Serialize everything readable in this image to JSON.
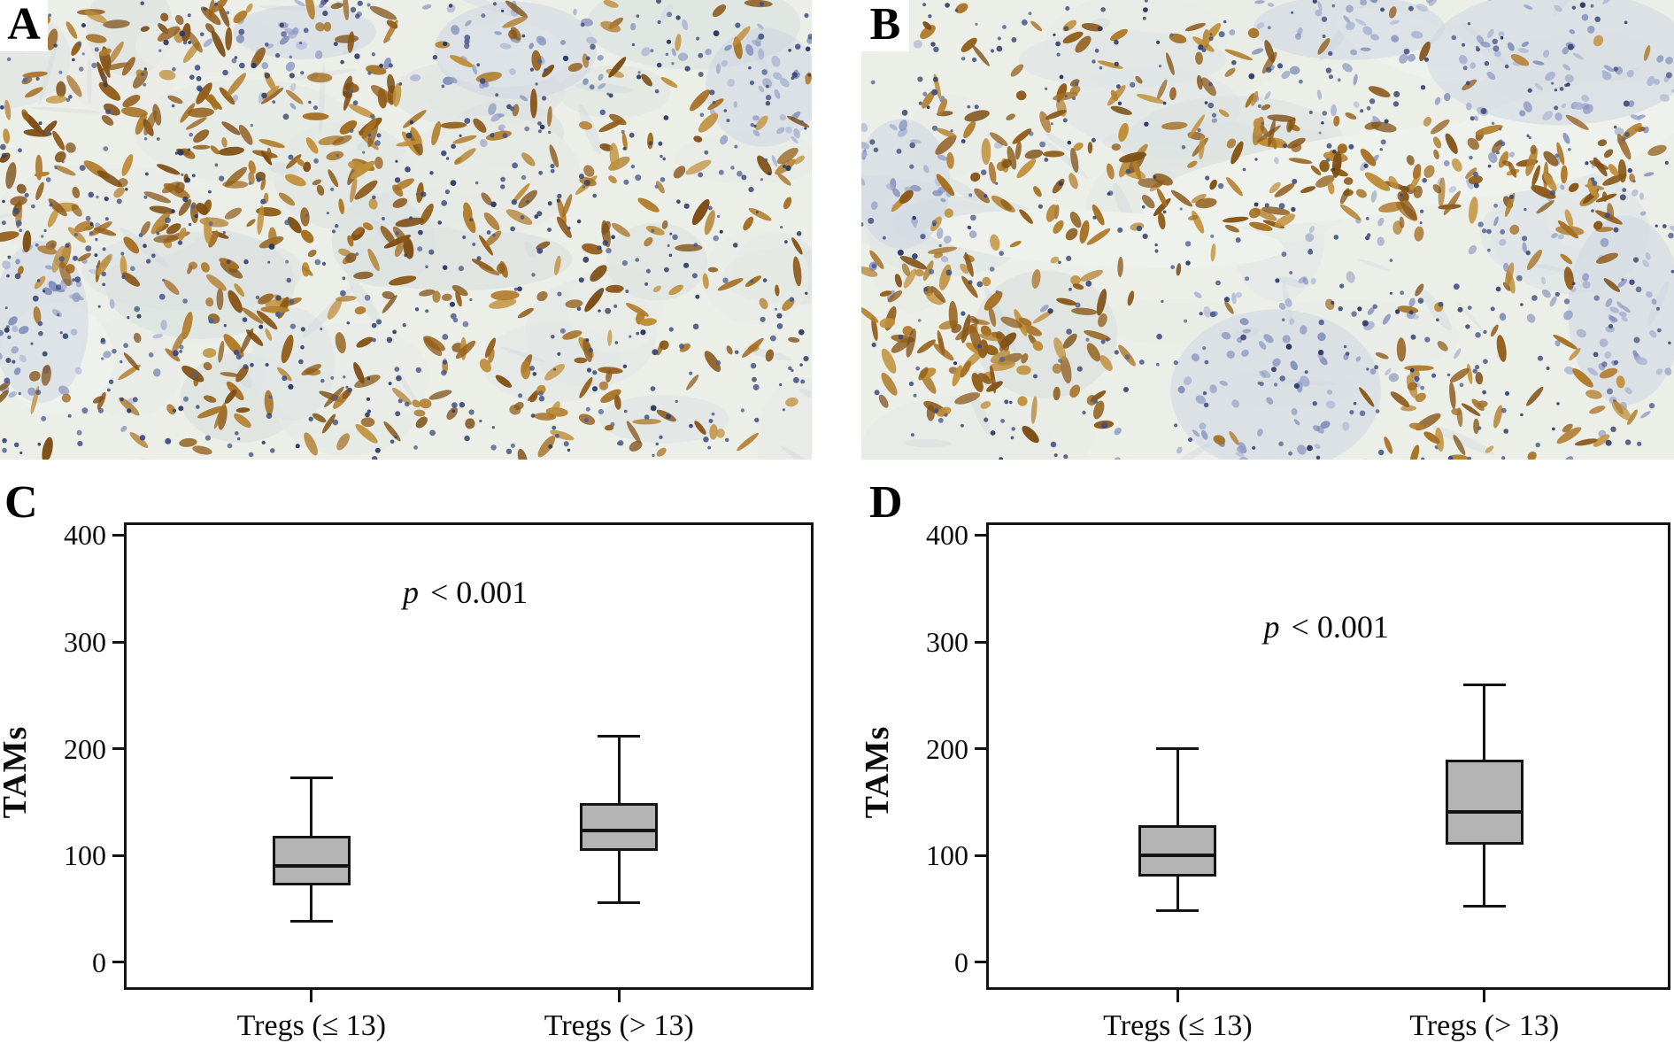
{
  "figure": {
    "panels": [
      {
        "id": "A",
        "label": "A",
        "description": "immunohistochemistry micrograph, brown TAM staining, dense"
      },
      {
        "id": "B",
        "label": "B",
        "description": "immunohistochemistry micrograph, brown TAM staining, banded"
      },
      {
        "id": "C",
        "label": "C",
        "description": "box plot of TAMs by Tregs group"
      },
      {
        "id": "D",
        "label": "D",
        "description": "box plot of TAMs by Tregs group"
      }
    ]
  },
  "chart_data": [
    {
      "panel": "C",
      "type": "box",
      "title": "",
      "xlabel": "",
      "ylabel": "TAMs",
      "categories": [
        "Tregs (≤ 13)",
        "Tregs (> 13)"
      ],
      "yticks": [
        0,
        100,
        200,
        300,
        400
      ],
      "ylim": [
        -26,
        412
      ],
      "grid": false,
      "annotation": "p < 0.001",
      "series": [
        {
          "name": "Tregs (≤ 13)",
          "whisker_low": 38,
          "q1": 72,
          "median": 90,
          "q3": 118,
          "whisker_high": 173
        },
        {
          "name": "Tregs (> 13)",
          "whisker_low": 56,
          "q1": 104,
          "median": 123,
          "q3": 149,
          "whisker_high": 212
        }
      ]
    },
    {
      "panel": "D",
      "type": "box",
      "title": "",
      "xlabel": "",
      "ylabel": "TAMs",
      "categories": [
        "Tregs (≤ 13)",
        "Tregs (> 13)"
      ],
      "yticks": [
        0,
        100,
        200,
        300,
        400
      ],
      "ylim": [
        -26,
        412
      ],
      "grid": false,
      "annotation": "p < 0.001",
      "series": [
        {
          "name": "Tregs (≤ 13)",
          "whisker_low": 48,
          "q1": 80,
          "median": 100,
          "q3": 128,
          "whisker_high": 200
        },
        {
          "name": "Tregs (> 13)",
          "whisker_low": 52,
          "q1": 110,
          "median": 141,
          "q3": 190,
          "whisker_high": 260
        }
      ]
    }
  ],
  "colors": {
    "line": "#141414",
    "box_fill": "#b4b4b4",
    "tissue_bg": "#eceee8",
    "stain_brown": "#96601c",
    "nuclei_blue": "#3d4c80",
    "epithelium_blue": "#9aa6cb"
  }
}
